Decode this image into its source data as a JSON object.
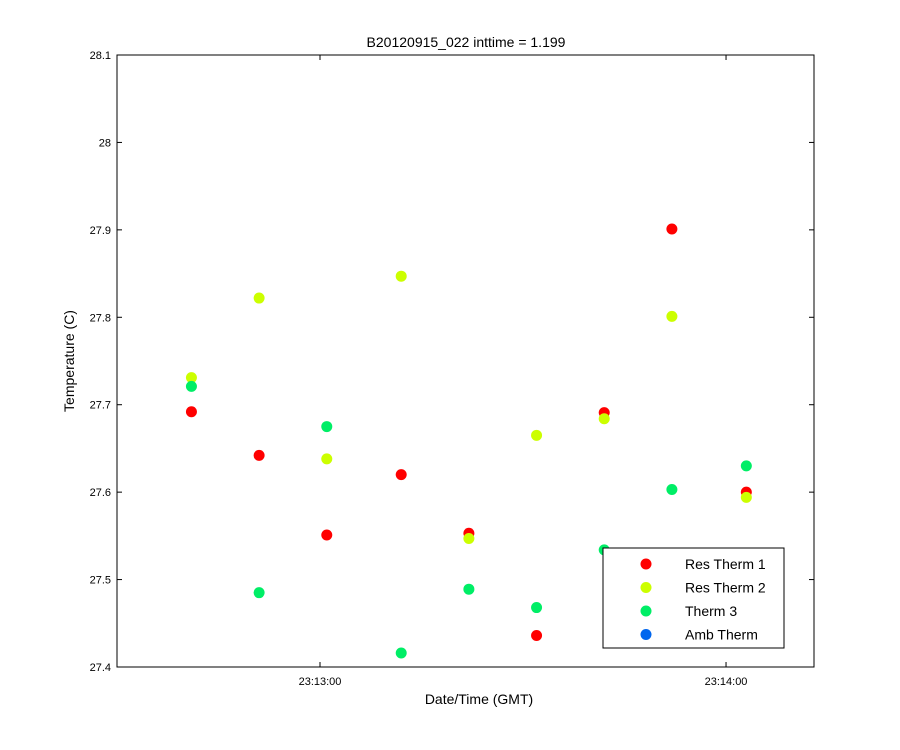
{
  "chart_data": {
    "type": "scatter",
    "title": "B20120915_022 inttime = 1.199",
    "xlabel": "Date/Time (GMT)",
    "ylabel": "Temperature (C)",
    "x_ticks": [
      {
        "time": "23:13:00",
        "label": "23:13:00"
      },
      {
        "time": "23:14:00",
        "label": "23:14:00"
      }
    ],
    "xlim": [
      "23:12:30",
      "23:14:13"
    ],
    "ylim": [
      27.4,
      28.1
    ],
    "y_ticks": [
      27.4,
      27.5,
      27.6,
      27.7,
      27.8,
      27.9,
      28,
      28.1
    ],
    "y_tick_labels": [
      "27.4",
      "27.5",
      "27.6",
      "27.7",
      "27.8",
      "27.9",
      "28",
      "28.1"
    ],
    "grid": false,
    "legend_position": "bottom-right",
    "series": [
      {
        "name": "Res Therm 1",
        "color": "#ff0000",
        "x": [
          "23:12:41",
          "23:12:51",
          "23:13:01",
          "23:13:12",
          "23:13:22",
          "23:13:32",
          "23:13:42",
          "23:13:52",
          "23:14:03"
        ],
        "y": [
          27.692,
          27.642,
          27.551,
          27.62,
          27.553,
          27.436,
          27.691,
          27.901,
          27.6
        ]
      },
      {
        "name": "Res Therm 2",
        "color": "#ccff00",
        "x": [
          "23:12:41",
          "23:12:51",
          "23:13:01",
          "23:13:12",
          "23:13:22",
          "23:13:32",
          "23:13:42",
          "23:13:52",
          "23:14:03"
        ],
        "y": [
          27.731,
          27.822,
          27.638,
          27.847,
          27.547,
          27.665,
          27.684,
          27.801,
          27.594
        ]
      },
      {
        "name": "Therm 3",
        "color": "#00ee66",
        "x": [
          "23:12:41",
          "23:12:51",
          "23:13:01",
          "23:13:12",
          "23:13:22",
          "23:13:32",
          "23:13:42",
          "23:13:52",
          "23:14:03"
        ],
        "y": [
          27.721,
          27.485,
          27.675,
          27.416,
          27.489,
          27.468,
          27.534,
          27.603,
          27.63
        ]
      },
      {
        "name": "Amb Therm",
        "color": "#0066ee",
        "x": [],
        "y": []
      }
    ]
  }
}
